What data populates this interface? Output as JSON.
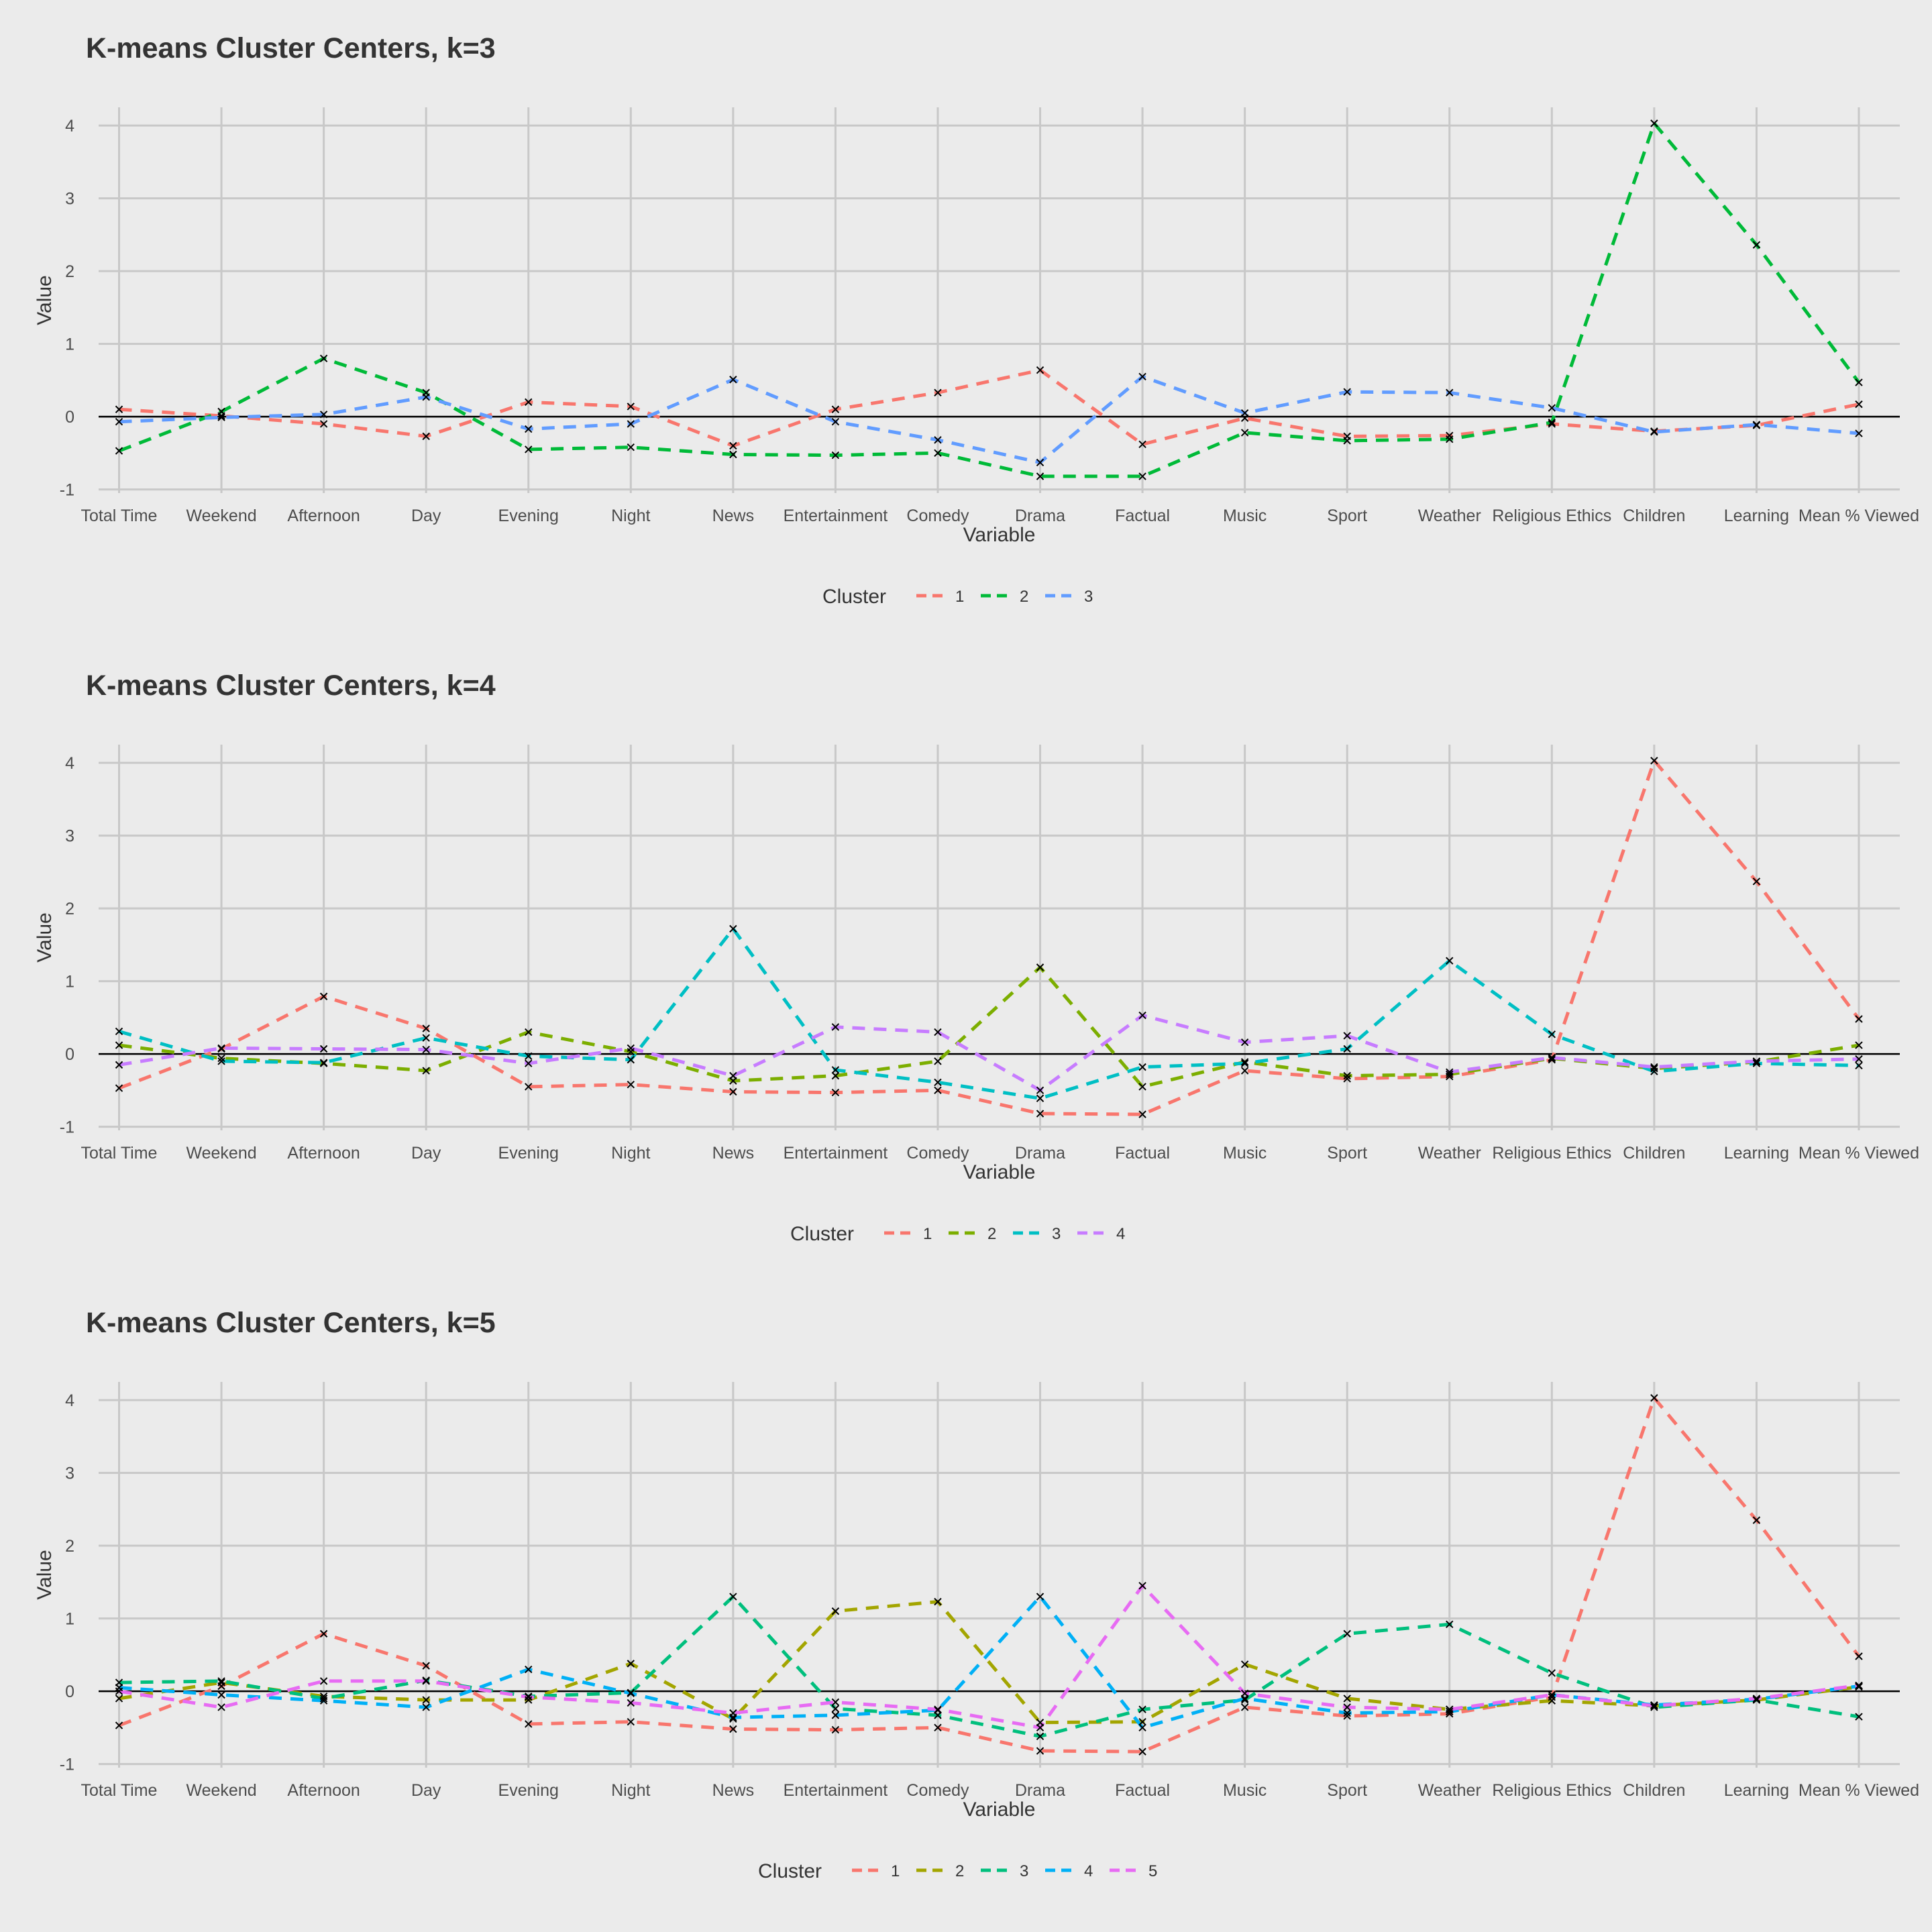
{
  "chart_data": [
    {
      "type": "line",
      "title": "K-means Cluster Centers, k=3",
      "xlabel": "Variable",
      "ylabel": "Value",
      "ylim": [
        -1.05,
        4.25
      ],
      "yticks": [
        "-1",
        "0",
        "1",
        "2",
        "3",
        "4"
      ],
      "categories": [
        "Total Time",
        "Weekend",
        "Afternoon",
        "Day",
        "Evening",
        "Night",
        "News",
        "Entertainment",
        "Comedy",
        "Drama",
        "Factual",
        "Music",
        "Sport",
        "Weather",
        "Religious Ethics",
        "Children",
        "Learning",
        "Mean % Viewed"
      ],
      "legend_title": "Cluster",
      "legend_position": "bottom",
      "series": [
        {
          "name": "1",
          "color": "#F8766D",
          "values": [
            0.1,
            0.01,
            -0.1,
            -0.27,
            0.2,
            0.14,
            -0.4,
            0.1,
            0.33,
            0.64,
            -0.38,
            -0.02,
            -0.27,
            -0.26,
            -0.1,
            -0.2,
            -0.12,
            0.17
          ]
        },
        {
          "name": "2",
          "color": "#00BA38",
          "values": [
            -0.47,
            0.07,
            0.8,
            0.33,
            -0.45,
            -0.42,
            -0.52,
            -0.53,
            -0.5,
            -0.82,
            -0.82,
            -0.22,
            -0.33,
            -0.31,
            -0.08,
            4.03,
            2.36,
            0.47
          ]
        },
        {
          "name": "3",
          "color": "#619CFF",
          "values": [
            -0.07,
            -0.01,
            0.03,
            0.27,
            -0.17,
            -0.1,
            0.51,
            -0.07,
            -0.32,
            -0.63,
            0.55,
            0.05,
            0.34,
            0.33,
            0.12,
            -0.21,
            -0.11,
            -0.23
          ]
        }
      ]
    },
    {
      "type": "line",
      "title": "K-means Cluster Centers, k=4",
      "xlabel": "Variable",
      "ylabel": "Value",
      "ylim": [
        -1.05,
        4.25
      ],
      "yticks": [
        "-1",
        "0",
        "1",
        "2",
        "3",
        "4"
      ],
      "categories": [
        "Total Time",
        "Weekend",
        "Afternoon",
        "Day",
        "Evening",
        "Night",
        "News",
        "Entertainment",
        "Comedy",
        "Drama",
        "Factual",
        "Music",
        "Sport",
        "Weather",
        "Religious Ethics",
        "Children",
        "Learning",
        "Mean % Viewed"
      ],
      "legend_title": "Cluster",
      "legend_position": "bottom",
      "series": [
        {
          "name": "1",
          "color": "#F8766D",
          "values": [
            -0.47,
            0.07,
            0.79,
            0.35,
            -0.45,
            -0.42,
            -0.52,
            -0.53,
            -0.5,
            -0.82,
            -0.83,
            -0.23,
            -0.34,
            -0.31,
            -0.08,
            4.03,
            2.37,
            0.48
          ]
        },
        {
          "name": "2",
          "color": "#7CAE00",
          "values": [
            0.12,
            -0.06,
            -0.13,
            -0.23,
            0.3,
            0.03,
            -0.37,
            -0.3,
            -0.1,
            1.19,
            -0.45,
            -0.11,
            -0.3,
            -0.28,
            -0.06,
            -0.2,
            -0.11,
            0.12
          ]
        },
        {
          "name": "3",
          "color": "#00BFC4",
          "values": [
            0.31,
            -0.1,
            -0.12,
            0.22,
            -0.03,
            -0.08,
            1.72,
            -0.22,
            -0.39,
            -0.61,
            -0.18,
            -0.13,
            0.07,
            1.28,
            0.27,
            -0.24,
            -0.13,
            -0.16
          ]
        },
        {
          "name": "4",
          "color": "#C77CFF",
          "values": [
            -0.15,
            0.08,
            0.07,
            0.06,
            -0.13,
            0.08,
            -0.3,
            0.37,
            0.3,
            -0.5,
            0.53,
            0.16,
            0.25,
            -0.25,
            -0.05,
            -0.18,
            -0.1,
            -0.07
          ]
        }
      ]
    },
    {
      "type": "line",
      "title": "K-means Cluster Centers, k=5",
      "xlabel": "Variable",
      "ylabel": "Value",
      "ylim": [
        -1.05,
        4.25
      ],
      "yticks": [
        "-1",
        "0",
        "1",
        "2",
        "3",
        "4"
      ],
      "categories": [
        "Total Time",
        "Weekend",
        "Afternoon",
        "Day",
        "Evening",
        "Night",
        "News",
        "Entertainment",
        "Comedy",
        "Drama",
        "Factual",
        "Music",
        "Sport",
        "Weather",
        "Religious Ethics",
        "Children",
        "Learning",
        "Mean % Viewed"
      ],
      "legend_title": "Cluster",
      "legend_position": "bottom",
      "series": [
        {
          "name": "1",
          "color": "#F8766D",
          "values": [
            -0.47,
            0.07,
            0.79,
            0.35,
            -0.45,
            -0.42,
            -0.52,
            -0.53,
            -0.5,
            -0.82,
            -0.83,
            -0.22,
            -0.34,
            -0.31,
            -0.08,
            4.03,
            2.35,
            0.48
          ]
        },
        {
          "name": "2",
          "color": "#A3A500",
          "values": [
            -0.1,
            0.12,
            -0.07,
            -0.12,
            -0.12,
            0.38,
            -0.38,
            1.1,
            1.23,
            -0.43,
            -0.42,
            0.37,
            -0.1,
            -0.25,
            -0.13,
            -0.2,
            -0.12,
            0.06
          ]
        },
        {
          "name": "3",
          "color": "#00BF7D",
          "values": [
            0.12,
            0.14,
            -0.1,
            0.15,
            -0.07,
            -0.02,
            1.3,
            -0.24,
            -0.33,
            -0.62,
            -0.25,
            -0.12,
            0.79,
            0.92,
            0.25,
            -0.22,
            -0.12,
            -0.35
          ]
        },
        {
          "name": "4",
          "color": "#00B0F6",
          "values": [
            0.05,
            -0.05,
            -0.13,
            -0.22,
            0.3,
            -0.03,
            -0.36,
            -0.33,
            -0.26,
            1.3,
            -0.5,
            -0.1,
            -0.3,
            -0.28,
            -0.05,
            -0.19,
            -0.11,
            0.07
          ]
        },
        {
          "name": "5",
          "color": "#E76BF3",
          "values": [
            0.0,
            -0.22,
            0.14,
            0.14,
            -0.08,
            -0.16,
            -0.3,
            -0.15,
            -0.25,
            -0.5,
            1.45,
            -0.03,
            -0.22,
            -0.25,
            -0.05,
            -0.2,
            -0.1,
            0.08
          ]
        }
      ]
    }
  ]
}
